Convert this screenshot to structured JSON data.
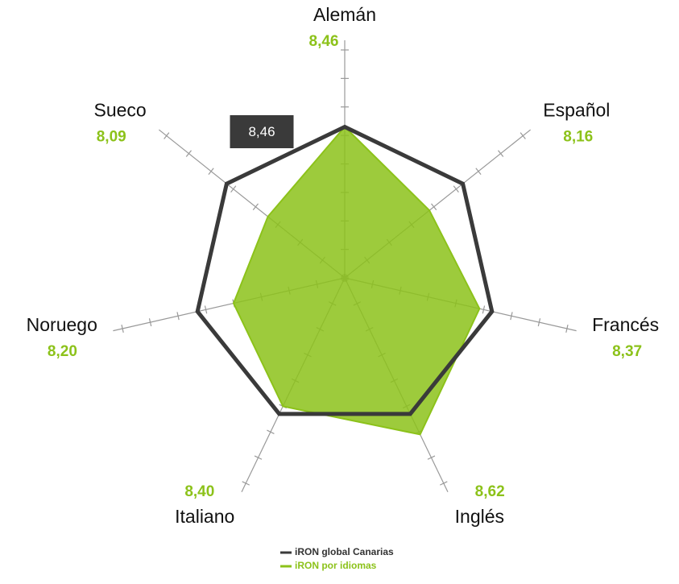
{
  "chart_data": {
    "type": "radar",
    "categories": [
      "Alemán",
      "Español",
      "Francés",
      "Inglés",
      "Italiano",
      "Noruego",
      "Sueco"
    ],
    "series": [
      {
        "name": "iRON global Canarias",
        "color": "#3a3a3a",
        "values": [
          8.46,
          8.46,
          8.46,
          8.46,
          8.46,
          8.46,
          8.46
        ]
      },
      {
        "name": "iRON por idiomas",
        "color": "#8cc21a",
        "values": [
          8.46,
          8.16,
          8.37,
          8.62,
          8.4,
          8.2,
          8.09
        ],
        "value_labels": [
          "8,46",
          "8,16",
          "8,37",
          "8,62",
          "8,40",
          "8,20",
          "8,09"
        ]
      }
    ],
    "rlim": [
      7.4,
      9.0
    ],
    "rticks": [
      7.4,
      7.6,
      7.8,
      8.0,
      8.2,
      8.4,
      8.6,
      8.8,
      9.0
    ],
    "tooltip": {
      "label": "8,46"
    },
    "legend": "bottom"
  }
}
